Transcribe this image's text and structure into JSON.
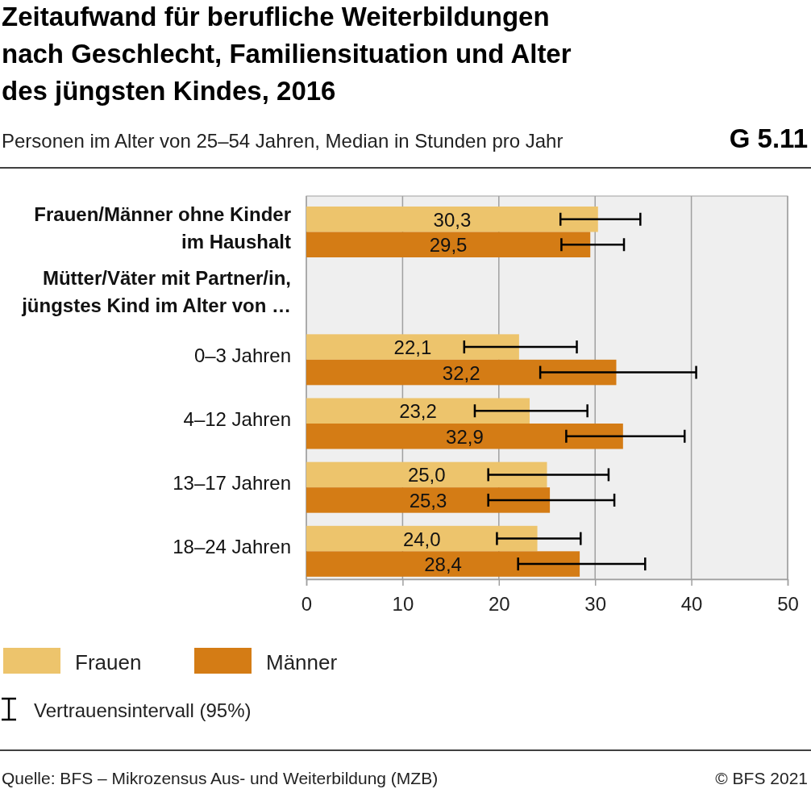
{
  "chart_data": {
    "type": "bar",
    "orientation": "horizontal",
    "title": "Zeitaufwand für berufliche Weiterbildungen\nnach Geschlecht, Familiensituation und Alter\ndes jüngsten Kindes, 2016",
    "subtitle": "Personen im Alter von 25–54 Jahren, Median in Stunden pro Jahr",
    "categories": [
      "Frauen/Männer ohne Kinder\nim Haushalt",
      "Mütter/Väter mit Partner/in,\njüngstes Kind im Alter von …",
      "0–3 Jahren",
      "4–12 Jahren",
      "13–17 Jahren",
      "18–24 Jahren"
    ],
    "series": [
      {
        "name": "Frauen",
        "color": "#edc46c",
        "values": [
          30.3,
          null,
          22.1,
          23.2,
          25.0,
          24.0
        ],
        "value_labels": [
          "30,3",
          null,
          "22,1",
          "23,2",
          "25,0",
          "24,0"
        ],
        "errors": [
          [
            26.4,
            34.7
          ],
          null,
          [
            16.4,
            28.1
          ],
          [
            17.5,
            29.2
          ],
          [
            18.9,
            31.4
          ],
          [
            19.8,
            28.5
          ]
        ]
      },
      {
        "name": "Männer",
        "color": "#d47c15",
        "values": [
          29.5,
          null,
          32.2,
          32.9,
          25.3,
          28.4
        ],
        "value_labels": [
          "29,5",
          null,
          "32,2",
          "32,9",
          "25,3",
          "28,4"
        ],
        "errors": [
          [
            26.5,
            33.0
          ],
          null,
          [
            24.3,
            40.5
          ],
          [
            27.0,
            39.3
          ],
          [
            18.9,
            32.0
          ],
          [
            22.0,
            35.2
          ]
        ]
      }
    ],
    "xlim": [
      0,
      50
    ],
    "xticks": [
      0,
      10,
      20,
      30,
      40,
      50
    ],
    "grid": "x",
    "legend": "bottom",
    "annotations": [
      "G 5.11",
      "Vertrauensintervall (95%)",
      "Quelle: BFS – Mikrozensus Aus- und Weiterbildung (MZB)",
      "© BFS 2021"
    ]
  }
}
